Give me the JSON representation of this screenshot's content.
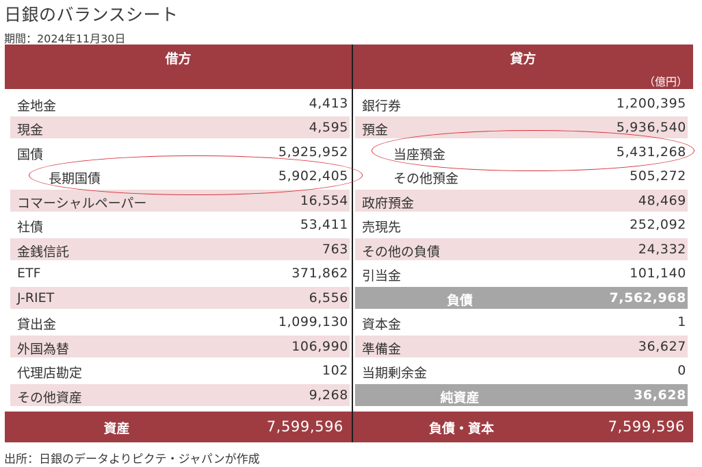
{
  "title": "日銀のバランスシート",
  "period": "期間：2024年11月30日",
  "source": "出所：日銀のデータよりピクテ・ジャパンが作成",
  "assets": {
    "header": "借方",
    "rows": [
      {
        "name": "金地金",
        "value": "4,413"
      },
      {
        "name": "現金",
        "value": "4,595"
      },
      {
        "name": "国債",
        "value": "5,925,952"
      },
      {
        "name": "長期国債",
        "value": "5,902,405"
      },
      {
        "name": "コマーシャルペーパー",
        "value": "16,554"
      },
      {
        "name": "社債",
        "value": "53,411"
      },
      {
        "name": "金銭信託",
        "value": "763"
      },
      {
        "name": "ETF",
        "value": "371,862"
      },
      {
        "name": "J-RIET",
        "value": "6,556"
      },
      {
        "name": "貸出金",
        "value": "1,099,130"
      },
      {
        "name": "外国為替",
        "value": "106,990"
      },
      {
        "name": "代理店勘定",
        "value": "102"
      },
      {
        "name": "その他資産",
        "value": "9,268"
      }
    ],
    "total": {
      "name": "資産",
      "value": "7,599,596"
    }
  },
  "liabilities": {
    "header": "貸方",
    "unit": "（億円）",
    "rows": [
      {
        "name": "銀行券",
        "value": "1,200,395"
      },
      {
        "name": "預金",
        "value": "5,936,540"
      },
      {
        "name": "当座預金",
        "value": "5,431,268"
      },
      {
        "name": "その他預金",
        "value": "505,272"
      },
      {
        "name": "政府預金",
        "value": "48,469"
      },
      {
        "name": "売現先",
        "value": "252,092"
      },
      {
        "name": "その他の負債",
        "value": "24,332"
      },
      {
        "name": "引当金",
        "value": "101,140"
      },
      {
        "name": "負債",
        "value": "7,562,968"
      },
      {
        "name": "資本金",
        "value": "1"
      },
      {
        "name": "準備金",
        "value": "36,627"
      },
      {
        "name": "当期剰余金",
        "value": "0"
      },
      {
        "name": "純資産",
        "value": "36,628"
      }
    ],
    "total": {
      "name": "負債・資本",
      "value": "7,599,596"
    }
  },
  "colors": {
    "header_bg": "#9e3c42",
    "shade_row": "#f2dcdd",
    "subtotal_bg": "#a6a6a6",
    "highlight_circle": "#d8313a"
  }
}
